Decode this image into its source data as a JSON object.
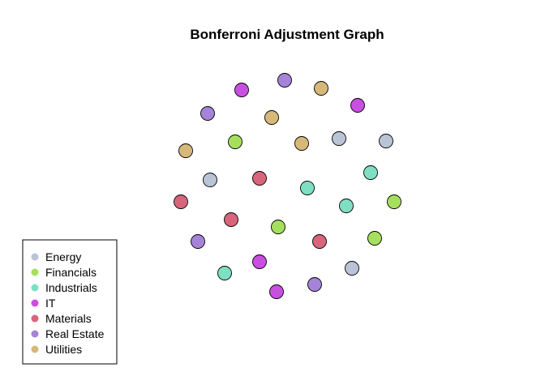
{
  "title": "Bonferroni Adjustment Graph",
  "legend": {
    "items": [
      {
        "label": "Energy",
        "color": "#b9c4d7"
      },
      {
        "label": "Financials",
        "color": "#a6df5e"
      },
      {
        "label": "Industrials",
        "color": "#7fdfc3"
      },
      {
        "label": "IT",
        "color": "#c94fe0"
      },
      {
        "label": "Materials",
        "color": "#d7657b"
      },
      {
        "label": "Real Estate",
        "color": "#a583d8"
      },
      {
        "label": "Utilities",
        "color": "#d6b97a"
      }
    ]
  },
  "nodes": [
    {
      "group": "Real Estate"
    },
    {
      "group": "IT"
    },
    {
      "group": "Utilities"
    },
    {
      "group": "IT"
    },
    {
      "group": "Real Estate"
    },
    {
      "group": "Utilities"
    },
    {
      "group": "Utilities"
    },
    {
      "group": "Financials"
    },
    {
      "group": "Utilities"
    },
    {
      "group": "Energy"
    },
    {
      "group": "Energy"
    },
    {
      "group": "Industrials"
    },
    {
      "group": "Energy"
    },
    {
      "group": "Materials"
    },
    {
      "group": "Industrials"
    },
    {
      "group": "Materials"
    },
    {
      "group": "Industrials"
    },
    {
      "group": "Financials"
    },
    {
      "group": "Materials"
    },
    {
      "group": "Financials"
    },
    {
      "group": "Materials"
    },
    {
      "group": "Financials"
    },
    {
      "group": "Real Estate"
    },
    {
      "group": "IT"
    },
    {
      "group": "Industrials"
    },
    {
      "group": "Energy"
    },
    {
      "group": "Real Estate"
    },
    {
      "group": "IT"
    }
  ]
}
